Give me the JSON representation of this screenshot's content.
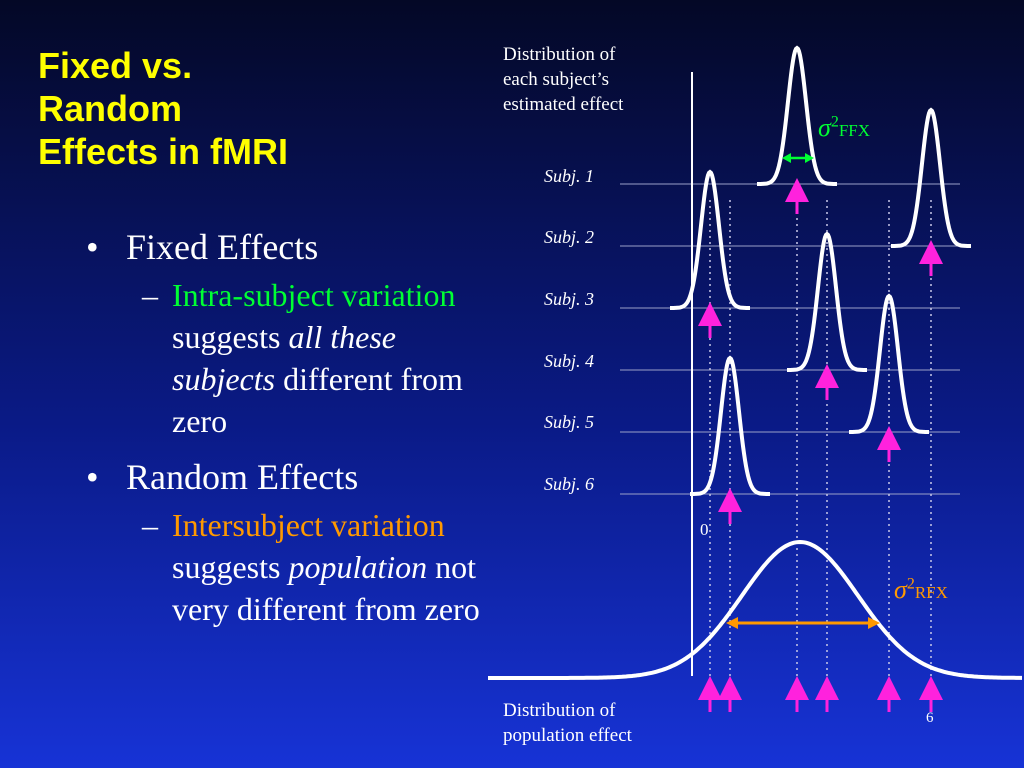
{
  "title": {
    "line1": "Fixed vs.",
    "line2": "Random",
    "line3": "Effects in fMRI"
  },
  "bullets": [
    {
      "bullet": "•",
      "text": "Fixed Effects",
      "sub": {
        "dash": "–",
        "highlight": "Intra-subject variation",
        "rest1": " suggests ",
        "italic": "all these subjects",
        "rest2": " different from zero"
      }
    },
    {
      "bullet": "•",
      "text": "Random Effects",
      "sub": {
        "dash": "–",
        "highlight": "Intersubject variation",
        "rest1": " suggests ",
        "italic": "population",
        "rest2": " not very different from zero"
      }
    }
  ],
  "diagram": {
    "top_caption": [
      "Distribution of",
      "each subject’s",
      "estimated effect"
    ],
    "bottom_caption": [
      "Distribution of",
      "population effect"
    ],
    "subjects": [
      "Subj. 1",
      "Subj. 2",
      "Subj. 3",
      "Subj. 4",
      "Subj. 5",
      "Subj. 6"
    ],
    "zero_label": "0",
    "page_number": "6",
    "sigma_ffx": {
      "symbol": "σ",
      "power": "2",
      "sub": "FFX"
    },
    "sigma_rfx": {
      "symbol": "σ",
      "power": "2",
      "sub": "RFX"
    },
    "colors": {
      "title": "#ffff00",
      "intra": "#00ff33",
      "inter": "#ff9900",
      "arrow": "#ff22dd",
      "curve": "#ffffff"
    }
  }
}
